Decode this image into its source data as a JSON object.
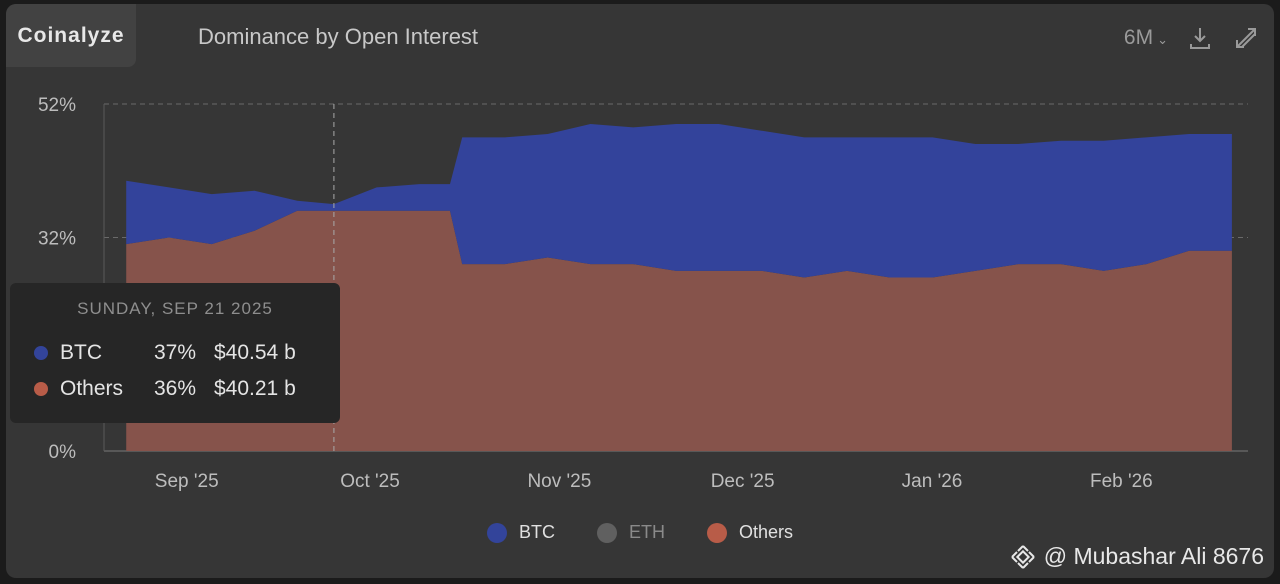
{
  "brand": "Coinalyze",
  "title": "Dominance by Open Interest",
  "toolbar": {
    "range": "6M",
    "download_icon": "download-icon",
    "fullscreen_icon": "expand-icon"
  },
  "tooltip": {
    "date": "SUNDAY, SEP 21 2025",
    "rows": [
      {
        "name": "BTC",
        "pct": "37%",
        "value": "$40.54 b",
        "color": "#33449a"
      },
      {
        "name": "Others",
        "pct": "36%",
        "value": "$40.21 b",
        "color": "#b85c48"
      }
    ]
  },
  "legend": [
    {
      "name": "BTC",
      "color": "#33449a",
      "enabled": true
    },
    {
      "name": "ETH",
      "color": "#606060",
      "enabled": false
    },
    {
      "name": "Others",
      "color": "#b85c48",
      "enabled": true
    }
  ],
  "watermark": "@ Mubashar Ali 8676",
  "colors": {
    "btc_fill": "#33439b",
    "others_fill": "#86534b",
    "grid": "#6a6a6a",
    "crosshair": "#a9a9a9"
  },
  "chart_data": {
    "type": "area",
    "stacked": true,
    "title": "Dominance by Open Interest",
    "x_tick_labels": [
      "Sep '25",
      "Oct '25",
      "Nov '25",
      "Dec '25",
      "Jan '26",
      "Feb '26"
    ],
    "y_tick_labels": [
      "52%",
      "32%",
      "0%"
    ],
    "ylim": [
      0,
      52
    ],
    "grid": true,
    "crosshair_date": "2025-09-21",
    "legend_position": "bottom-center",
    "dates": [
      "2025-08-18",
      "2025-08-25",
      "2025-09-01",
      "2025-09-08",
      "2025-09-15",
      "2025-09-21",
      "2025-09-28",
      "2025-10-05",
      "2025-10-10",
      "2025-10-12",
      "2025-10-19",
      "2025-10-26",
      "2025-11-02",
      "2025-11-09",
      "2025-11-16",
      "2025-11-23",
      "2025-11-30",
      "2025-12-07",
      "2025-12-14",
      "2025-12-21",
      "2025-12-28",
      "2026-01-04",
      "2026-01-11",
      "2026-01-18",
      "2026-01-25",
      "2026-02-01",
      "2026-02-08",
      "2026-02-15"
    ],
    "series": [
      {
        "name": "Others",
        "values": [
          31,
          32,
          31,
          33,
          36,
          36,
          36,
          36,
          36,
          28,
          28,
          29,
          28,
          28,
          27,
          27,
          27,
          26,
          27,
          26,
          26,
          27,
          28,
          28,
          27,
          28,
          30,
          30
        ]
      },
      {
        "name": "BTC",
        "values": [
          9.5,
          7.5,
          7.5,
          6,
          1.5,
          1,
          3.5,
          4,
          4,
          19,
          19,
          18.5,
          21,
          20.5,
          22,
          22,
          21,
          21,
          20,
          21,
          21,
          19,
          18,
          18.5,
          19.5,
          19,
          17.5,
          17.5
        ]
      }
    ]
  }
}
